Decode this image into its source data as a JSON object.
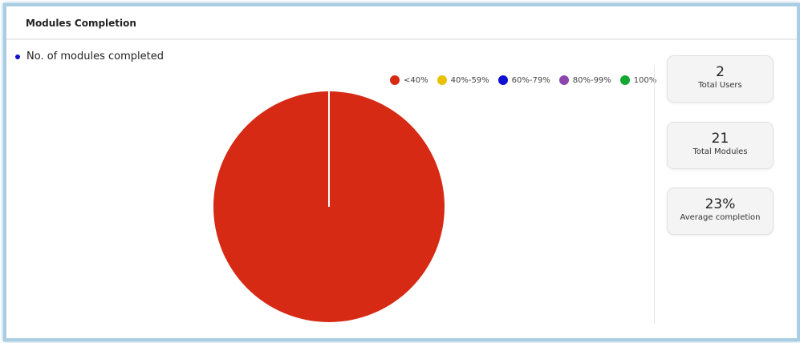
{
  "header": {
    "title": "Modules Completion"
  },
  "chart_data": {
    "type": "pie",
    "title": "No. of modules completed",
    "categories": [
      "<40%",
      "40%-59%",
      "60%-79%",
      "80%-99%",
      "100%"
    ],
    "colors": [
      "#d62a14",
      "#e8c000",
      "#1010d0",
      "#8e44ad",
      "#12a832"
    ],
    "values": [
      2,
      0,
      0,
      0,
      0
    ],
    "legend": "top-right"
  },
  "stats": [
    {
      "value": "2",
      "label": "Total Users"
    },
    {
      "value": "21",
      "label": "Total Modules"
    },
    {
      "value": "23%",
      "label": "Average completion"
    }
  ]
}
